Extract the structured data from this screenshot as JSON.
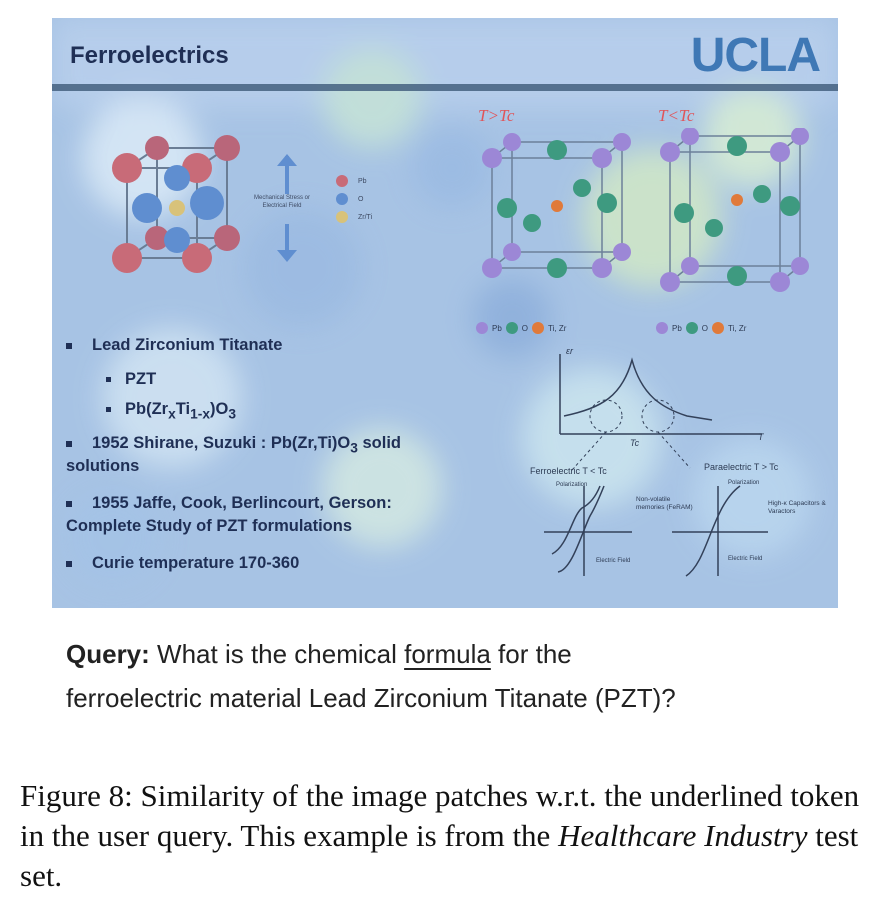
{
  "slide": {
    "title": "Ferroelectrics",
    "logo": "UCLA",
    "cube_labels": {
      "stress": "Mechanical Stress or Electrical Field",
      "pb": "Pb",
      "o": "O",
      "zrti": "Zr/Ti"
    },
    "panels": [
      {
        "temp_label": "T>Tc",
        "legend": [
          "Pb",
          "O",
          "Ti, Zr"
        ]
      },
      {
        "temp_label": "T<Tc",
        "legend": [
          "Pb",
          "O",
          "Ti, Zr"
        ]
      }
    ],
    "bullets": {
      "b1": "Lead Zirconium Titanate",
      "b1a": "PZT",
      "b1b_prefix": "Pb(Zr",
      "b1b_sub1": "x",
      "b1b_mid": "Ti",
      "b1b_sub2": "1-x",
      "b1b_end": ")O",
      "b1b_sub3": "3",
      "b2_line1_prefix": "1952 Shirane, Suzuki : Pb(Zr,Ti)O",
      "b2_sub": "3",
      "b2_line1_suffix": " solid",
      "b2_line2": "solutions",
      "b3_line1": "1955  Jaffe, Cook, Berlincourt, Gerson:",
      "b3_line2": "Complete Study of PZT formulations",
      "b4": "Curie temperature 170-360"
    },
    "diagram": {
      "eps_label": "εr",
      "tc_label": "Tc",
      "t_label": "T",
      "ferro_label": "Ferroelectric  T < Tc",
      "para_label": "Paraelectric  T > Tc",
      "polarization": "Polarization",
      "electric_field": "Electric Field",
      "nonvolatile": "Non-volatile memories (FeRAM)",
      "highk": "High-κ Capacitors & Varactors"
    }
  },
  "query": {
    "prefix_bold": "Query:",
    "before": " What is the chemical ",
    "token": "formula",
    "after": " for the",
    "line2": "ferroelectric material Lead Zirconium Titanate (PZT)?"
  },
  "caption": {
    "before": "Figure 8: Similarity of the image patches w.r.t. the underlined token in the user query. This example is from the ",
    "italic": "Healthcare Industry",
    "after": " test set."
  },
  "colors": {
    "heat_low": "#8fb3e0",
    "heat_mid": "#c8dff2",
    "heat_high": "#bfe6c8",
    "title": "#1f2f55",
    "logo": "#3f78b5",
    "temp_label": "#e0555a"
  }
}
